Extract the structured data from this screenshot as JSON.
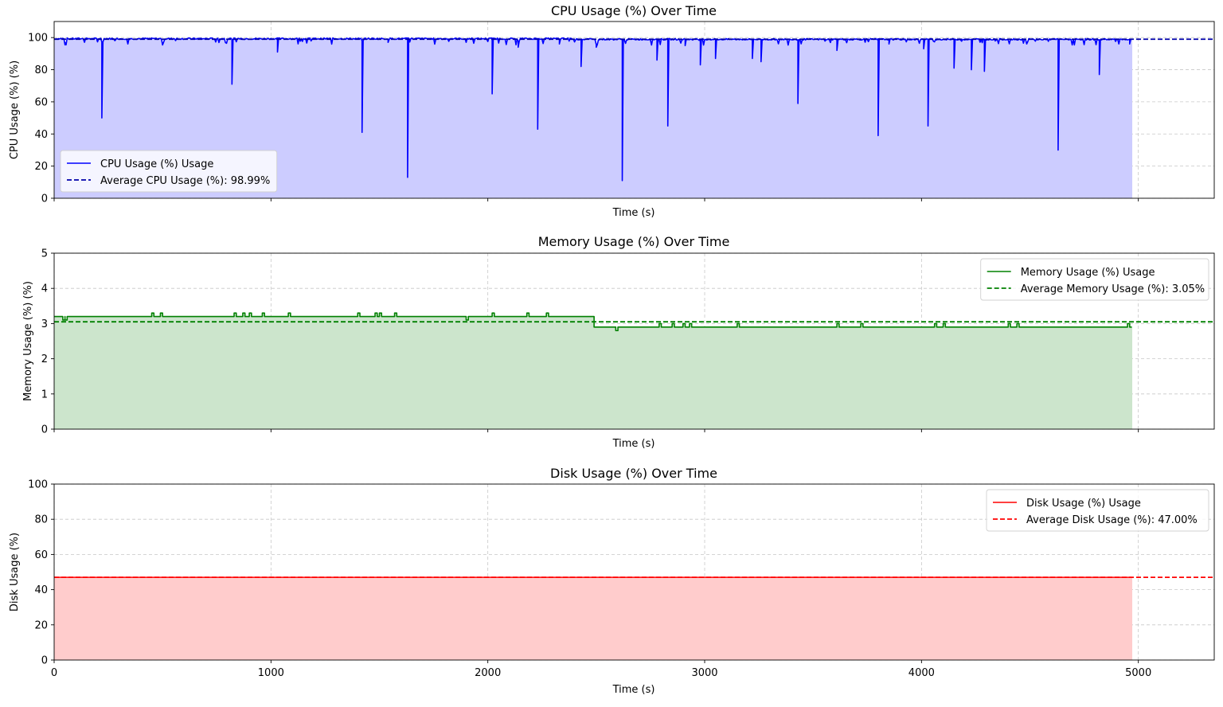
{
  "chart_data": [
    {
      "type": "area",
      "title": "CPU Usage (%) Over Time",
      "xlabel": "Time (s)",
      "ylabel": "CPU Usage (%) (%)",
      "xlim": [
        0,
        5350
      ],
      "ylim": [
        0,
        110
      ],
      "xticks": [
        0,
        1000,
        2000,
        3000,
        4000,
        5000
      ],
      "xtick_labels_visible": false,
      "yticks": [
        0,
        20,
        40,
        60,
        80,
        100
      ],
      "grid": true,
      "legend_position": "lower-left",
      "series": [
        {
          "name": "CPU Usage (%) Usage",
          "color": "#0000ff",
          "fill": "#ccccff",
          "baseline": 99.3,
          "x_range": [
            0,
            4970
          ],
          "dips": [
            [
              50,
              97
            ],
            [
              220,
              50
            ],
            [
              820,
              71
            ],
            [
              1030,
              91
            ],
            [
              1420,
              41
            ],
            [
              1540,
              97
            ],
            [
              1630,
              13
            ],
            [
              2020,
              65
            ],
            [
              2140,
              94
            ],
            [
              2230,
              43
            ],
            [
              2330,
              96
            ],
            [
              2430,
              82
            ],
            [
              2500,
              94
            ],
            [
              2620,
              11
            ],
            [
              2780,
              86
            ],
            [
              2830,
              45
            ],
            [
              2910,
              95
            ],
            [
              2980,
              83
            ],
            [
              3050,
              87
            ],
            [
              3220,
              87
            ],
            [
              3260,
              85
            ],
            [
              3430,
              59
            ],
            [
              3610,
              92
            ],
            [
              3800,
              39
            ],
            [
              3850,
              96
            ],
            [
              4010,
              93
            ],
            [
              4030,
              45
            ],
            [
              4150,
              81
            ],
            [
              4230,
              80
            ],
            [
              4290,
              79
            ],
            [
              4630,
              30
            ],
            [
              4820,
              77
            ],
            [
              4960,
              96
            ]
          ]
        },
        {
          "name": "Average CPU Usage (%): 98.99%",
          "color": "#0000aa",
          "dashed": true,
          "value": 98.99
        }
      ]
    },
    {
      "type": "area",
      "title": "Memory Usage (%) Over Time",
      "xlabel": "Time (s)",
      "ylabel": "Memory Usage (%) (%)",
      "xlim": [
        0,
        5350
      ],
      "ylim": [
        0,
        5
      ],
      "xticks": [
        0,
        1000,
        2000,
        3000,
        4000,
        5000
      ],
      "xtick_labels_visible": false,
      "yticks": [
        0,
        1,
        2,
        3,
        4,
        5
      ],
      "grid": true,
      "legend_position": "upper-right",
      "series": [
        {
          "name": "Memory Usage (%) Usage",
          "color": "#008000",
          "fill": "#cce5cc",
          "steps": [
            [
              0,
              3.2
            ],
            [
              2490,
              2.9
            ],
            [
              4970,
              2.9
            ]
          ],
          "blips": [
            [
              40,
              3.1
            ],
            [
              50,
              3.1
            ],
            [
              450,
              3.3
            ],
            [
              490,
              3.3
            ],
            [
              830,
              3.3
            ],
            [
              870,
              3.3
            ],
            [
              900,
              3.3
            ],
            [
              960,
              3.3
            ],
            [
              1080,
              3.3
            ],
            [
              1400,
              3.3
            ],
            [
              1480,
              3.3
            ],
            [
              1500,
              3.3
            ],
            [
              1570,
              3.3
            ],
            [
              1900,
              3.1
            ],
            [
              2020,
              3.3
            ],
            [
              2180,
              3.3
            ],
            [
              2270,
              3.3
            ],
            [
              2590,
              2.8
            ],
            [
              2790,
              3.0
            ],
            [
              2850,
              3.0
            ],
            [
              2900,
              3.0
            ],
            [
              2930,
              3.0
            ],
            [
              3150,
              3.0
            ],
            [
              3610,
              3.0
            ],
            [
              3720,
              3.0
            ],
            [
              4060,
              3.0
            ],
            [
              4100,
              3.0
            ],
            [
              4400,
              3.0
            ],
            [
              4440,
              3.0
            ],
            [
              4950,
              3.0
            ]
          ]
        },
        {
          "name": "Average Memory Usage (%): 3.05%",
          "color": "#008000",
          "dashed": true,
          "value": 3.05
        }
      ]
    },
    {
      "type": "area",
      "title": "Disk Usage (%) Over Time",
      "xlabel": "Time (s)",
      "ylabel": "Disk Usage (%)",
      "xlim": [
        0,
        5350
      ],
      "ylim": [
        0,
        100
      ],
      "xticks": [
        0,
        1000,
        2000,
        3000,
        4000,
        5000
      ],
      "xtick_labels_visible": true,
      "yticks": [
        0,
        20,
        40,
        60,
        80,
        100
      ],
      "grid": true,
      "legend_position": "upper-right",
      "series": [
        {
          "name": "Disk Usage (%) Usage",
          "color": "#ff0000",
          "fill": "#ffcccc",
          "steps": [
            [
              0,
              47.0
            ],
            [
              4970,
              47.0
            ]
          ]
        },
        {
          "name": "Average Disk Usage (%): 47.00%",
          "color": "#ff0000",
          "dashed": true,
          "value": 47.0
        }
      ]
    }
  ]
}
